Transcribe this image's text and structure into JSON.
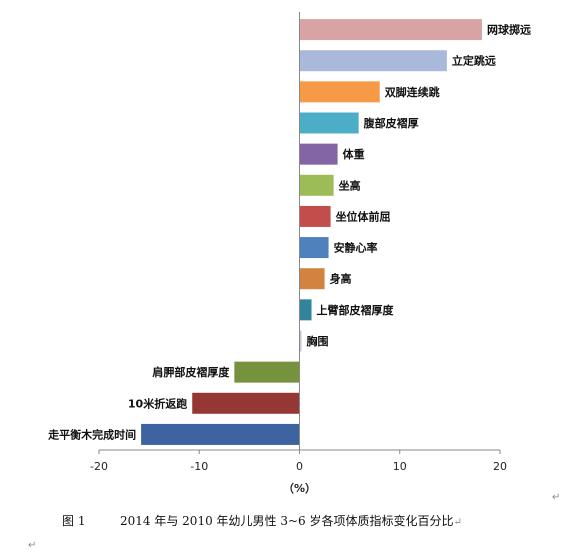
{
  "chart_data": {
    "type": "bar",
    "orientation": "horizontal",
    "categories": [
      "网球掷远",
      "立定跳远",
      "双脚连续跳",
      "腹部皮褶厚",
      "体重",
      "坐高",
      "坐位体前屈",
      "安静心率",
      "身高",
      "上臂部皮褶厚度",
      "胸围",
      "肩胛部皮褶厚度",
      "10米折返跑",
      "走平衡木完成时间"
    ],
    "values": [
      18.2,
      14.7,
      8.0,
      5.9,
      3.8,
      3.4,
      3.1,
      2.9,
      2.5,
      1.2,
      0.2,
      -6.5,
      -10.7,
      -15.8
    ],
    "colors": [
      "#D9A3A5",
      "#A9B9DA",
      "#F79A47",
      "#4BADC6",
      "#8364A5",
      "#9BBC57",
      "#C24E4C",
      "#4F81BD",
      "#D2833F",
      "#31849B",
      "#CCC0DA",
      "#77923C",
      "#953735",
      "#3D64A0"
    ],
    "xlim": [
      -20,
      20
    ],
    "xticks": [
      "-20",
      "-10",
      "0",
      "10",
      "20"
    ],
    "xlabel": "（%）",
    "title": "",
    "grid": false
  },
  "caption": {
    "figure_number": "图 1",
    "text": "2014 年与 2010 年幼儿男性 3~6 岁各项体质指标变化百分比"
  },
  "paragraph_mark": "↵"
}
